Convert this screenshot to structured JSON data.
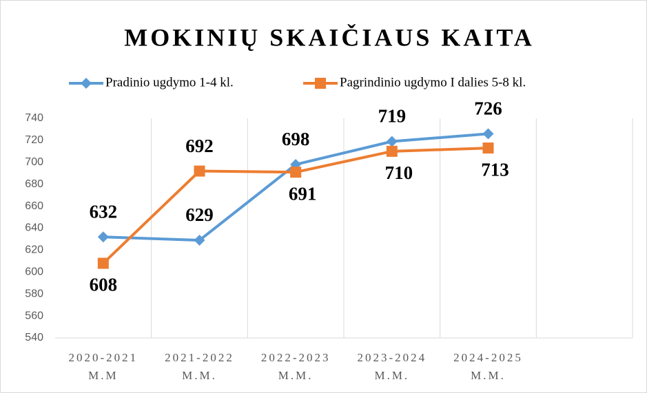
{
  "chart_data": {
    "type": "line",
    "title": "MOKINIŲ SKAIČIAUS KAITA",
    "categories": [
      "2020-2021\nM.M",
      "2021-2022\nM.M.",
      "2022-2023\nM.M.",
      "2023-2024\nM.M.",
      "2024-2025\nM.M.",
      null
    ],
    "series": [
      {
        "name": "Pradinio ugdymo 1-4 kl.",
        "color": "#5b9bd5",
        "marker": "diamond",
        "values": [
          632,
          629,
          698,
          719,
          726,
          null
        ]
      },
      {
        "name": "Pagrindinio ugdymo I dalies 5-8 kl.",
        "color": "#ed7d31",
        "marker": "square",
        "values": [
          608,
          692,
          691,
          710,
          713,
          null
        ]
      }
    ],
    "ylim": [
      540,
      740
    ],
    "yticks": [
      540,
      560,
      580,
      600,
      620,
      640,
      660,
      680,
      700,
      720,
      740
    ],
    "grid": true,
    "legend": "top"
  }
}
